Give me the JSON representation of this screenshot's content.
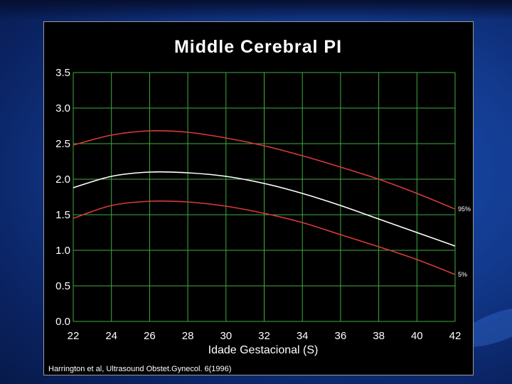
{
  "colors": {
    "background": "#123a8e",
    "panel": "#000000",
    "grid": "#3fae3f",
    "percentile_curve": "#d83a3a",
    "mean_curve": "#ffffff"
  },
  "chart_data": {
    "type": "line",
    "title": "Middle Cerebral PI",
    "xlabel": "Idade Gestacional (S)",
    "ylabel": "",
    "xlim": [
      22,
      42
    ],
    "ylim": [
      0.0,
      3.5
    ],
    "xticks": [
      "22",
      "24",
      "26",
      "28",
      "30",
      "32",
      "34",
      "36",
      "38",
      "40",
      "42"
    ],
    "yticks": [
      "3.5",
      "3.0",
      "2.5",
      "2.0",
      "1.5",
      "1.0",
      "0.5",
      "0.0"
    ],
    "grid": true,
    "x": [
      22,
      24,
      26,
      28,
      30,
      32,
      34,
      36,
      38,
      40,
      42
    ],
    "series": [
      {
        "name": "95%",
        "color": "#d83a3a",
        "values": [
          2.48,
          2.62,
          2.68,
          2.66,
          2.58,
          2.47,
          2.33,
          2.17,
          2.0,
          1.8,
          1.58
        ]
      },
      {
        "name": "",
        "color": "#ffffff",
        "values": [
          1.88,
          2.04,
          2.1,
          2.09,
          2.04,
          1.94,
          1.8,
          1.63,
          1.44,
          1.25,
          1.06
        ]
      },
      {
        "name": "5%",
        "color": "#d83a3a",
        "values": [
          1.45,
          1.63,
          1.69,
          1.68,
          1.62,
          1.52,
          1.39,
          1.22,
          1.05,
          0.87,
          0.66
        ]
      }
    ]
  },
  "citation": "Harrington et al, Ultrasound Obstet.Gynecol. 6(1996)"
}
